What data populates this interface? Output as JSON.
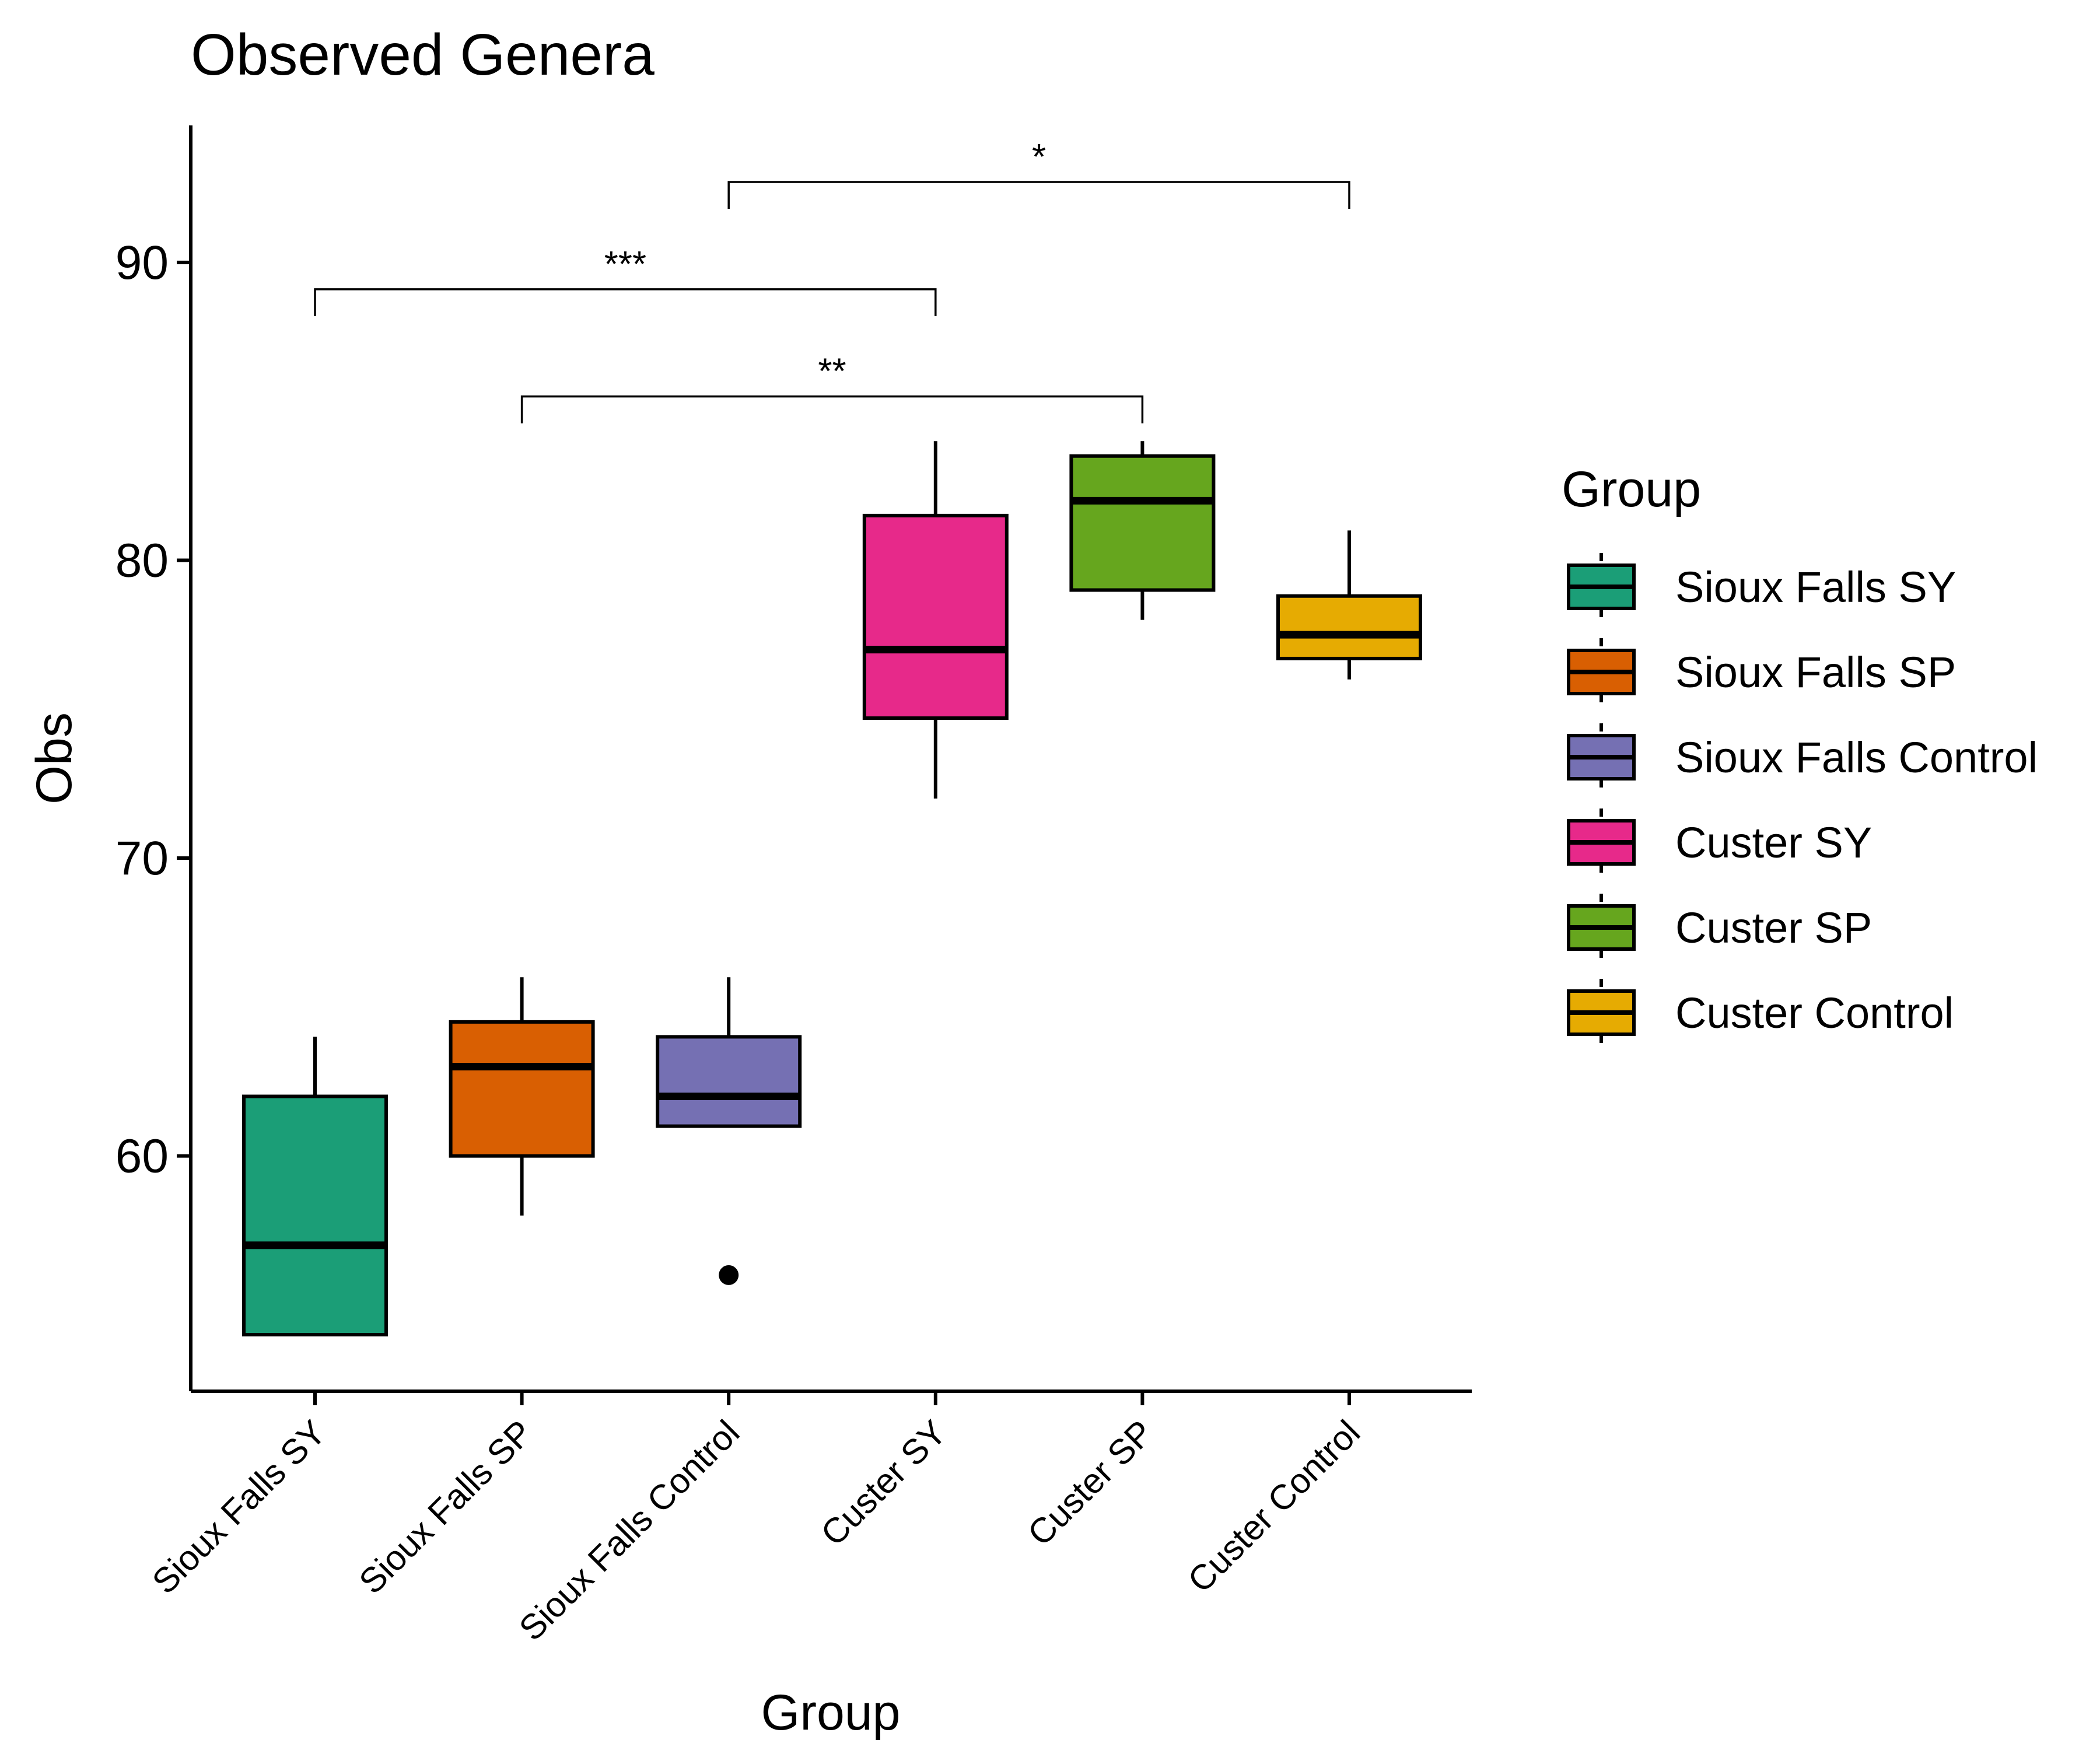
{
  "chart_data": {
    "type": "boxplot",
    "title": "Observed Genera",
    "xlabel": "Group",
    "ylabel": "Obs",
    "ylim": [
      52.1,
      94.6
    ],
    "yticks": [
      60,
      70,
      80,
      90
    ],
    "grid": false,
    "legend": {
      "title": "Group",
      "position": "right"
    },
    "categories": [
      "Sioux Falls SY",
      "Sioux Falls SP",
      "Sioux Falls Control",
      "Custer SY",
      "Custer SP",
      "Custer Control"
    ],
    "colors": [
      "#1b9e77",
      "#d95f02",
      "#7570b3",
      "#e7298a",
      "#66a61e",
      "#e6ab02"
    ],
    "boxes": [
      {
        "group": "Sioux Falls SY",
        "whisker_low": 54,
        "q1": 54,
        "median": 57,
        "q3": 62,
        "whisker_high": 64,
        "outliers": []
      },
      {
        "group": "Sioux Falls SP",
        "whisker_low": 58,
        "q1": 60,
        "median": 63,
        "q3": 64.5,
        "whisker_high": 66,
        "outliers": []
      },
      {
        "group": "Sioux Falls Control",
        "whisker_low": 61,
        "q1": 61,
        "median": 62,
        "q3": 64,
        "whisker_high": 66,
        "outliers": [
          56
        ]
      },
      {
        "group": "Custer SY",
        "whisker_low": 72,
        "q1": 74.7,
        "median": 77,
        "q3": 81.5,
        "whisker_high": 84,
        "outliers": []
      },
      {
        "group": "Custer SP",
        "whisker_low": 78,
        "q1": 79,
        "median": 82,
        "q3": 83.5,
        "whisker_high": 84,
        "outliers": []
      },
      {
        "group": "Custer Control",
        "whisker_low": 76,
        "q1": 76.7,
        "median": 77.5,
        "q3": 78.8,
        "whisker_high": 81,
        "outliers": []
      }
    ],
    "significance": [
      {
        "from": "Sioux Falls SY",
        "to": "Custer SY",
        "label": "***",
        "y": 89.1
      },
      {
        "from": "Sioux Falls SP",
        "to": "Custer SP",
        "label": "**",
        "y": 85.5
      },
      {
        "from": "Sioux Falls Control",
        "to": "Custer Control",
        "label": "*",
        "y": 92.7
      }
    ]
  }
}
